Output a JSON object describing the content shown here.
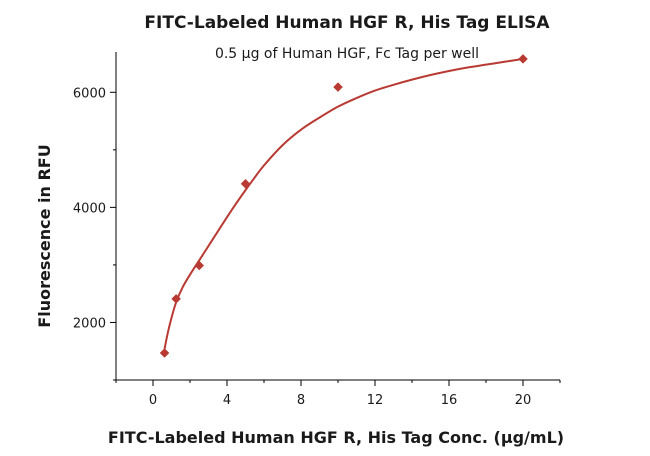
{
  "chart_data": {
    "type": "scatter",
    "title": "FITC-Labeled Human HGF R, His Tag ELISA",
    "subtitle": "0.5 μg of Human HGF, Fc Tag per well",
    "xlabel": "FITC-Labeled Human HGF R, His Tag Conc. (μg/mL)",
    "ylabel": "Fluorescence in RFU",
    "xlim": [
      -2,
      22
    ],
    "ylim": [
      1000,
      6700
    ],
    "x_ticks": [
      0,
      4,
      8,
      12,
      16,
      20
    ],
    "x_tick_labels": [
      "0",
      "4",
      "8",
      "12",
      "16",
      "20"
    ],
    "y_ticks": [
      2000,
      4000,
      6000
    ],
    "y_tick_labels": [
      "2000",
      "4000",
      "6000"
    ],
    "grid": false,
    "legend": "none",
    "series": [
      {
        "points": [
          {
            "x": 0.625,
            "y": 1470
          },
          {
            "x": 1.25,
            "y": 2410
          },
          {
            "x": 2.5,
            "y": 2990
          },
          {
            "x": 5,
            "y": 4410
          },
          {
            "x": 10,
            "y": 6090
          },
          {
            "x": 20,
            "y": 6580
          }
        ],
        "marker": "diamond",
        "color": "#b83a32",
        "fit_curve": {
          "x": [
            0.625,
            0.8,
            1.0,
            1.25,
            1.6,
            2.0,
            2.5,
            3.0,
            3.5,
            4.0,
            4.5,
            5.0,
            5.5,
            6.0,
            7.0,
            8.0,
            9.0,
            10.0,
            11.0,
            12.0,
            13.0,
            14.0,
            15.0,
            16.0,
            17.0,
            18.0,
            19.0,
            20.0
          ],
          "y": [
            1540,
            1820,
            2080,
            2350,
            2610,
            2830,
            3080,
            3330,
            3580,
            3830,
            4070,
            4300,
            4520,
            4730,
            5080,
            5350,
            5560,
            5750,
            5900,
            6030,
            6130,
            6220,
            6300,
            6370,
            6430,
            6480,
            6530,
            6580
          ]
        }
      }
    ]
  }
}
